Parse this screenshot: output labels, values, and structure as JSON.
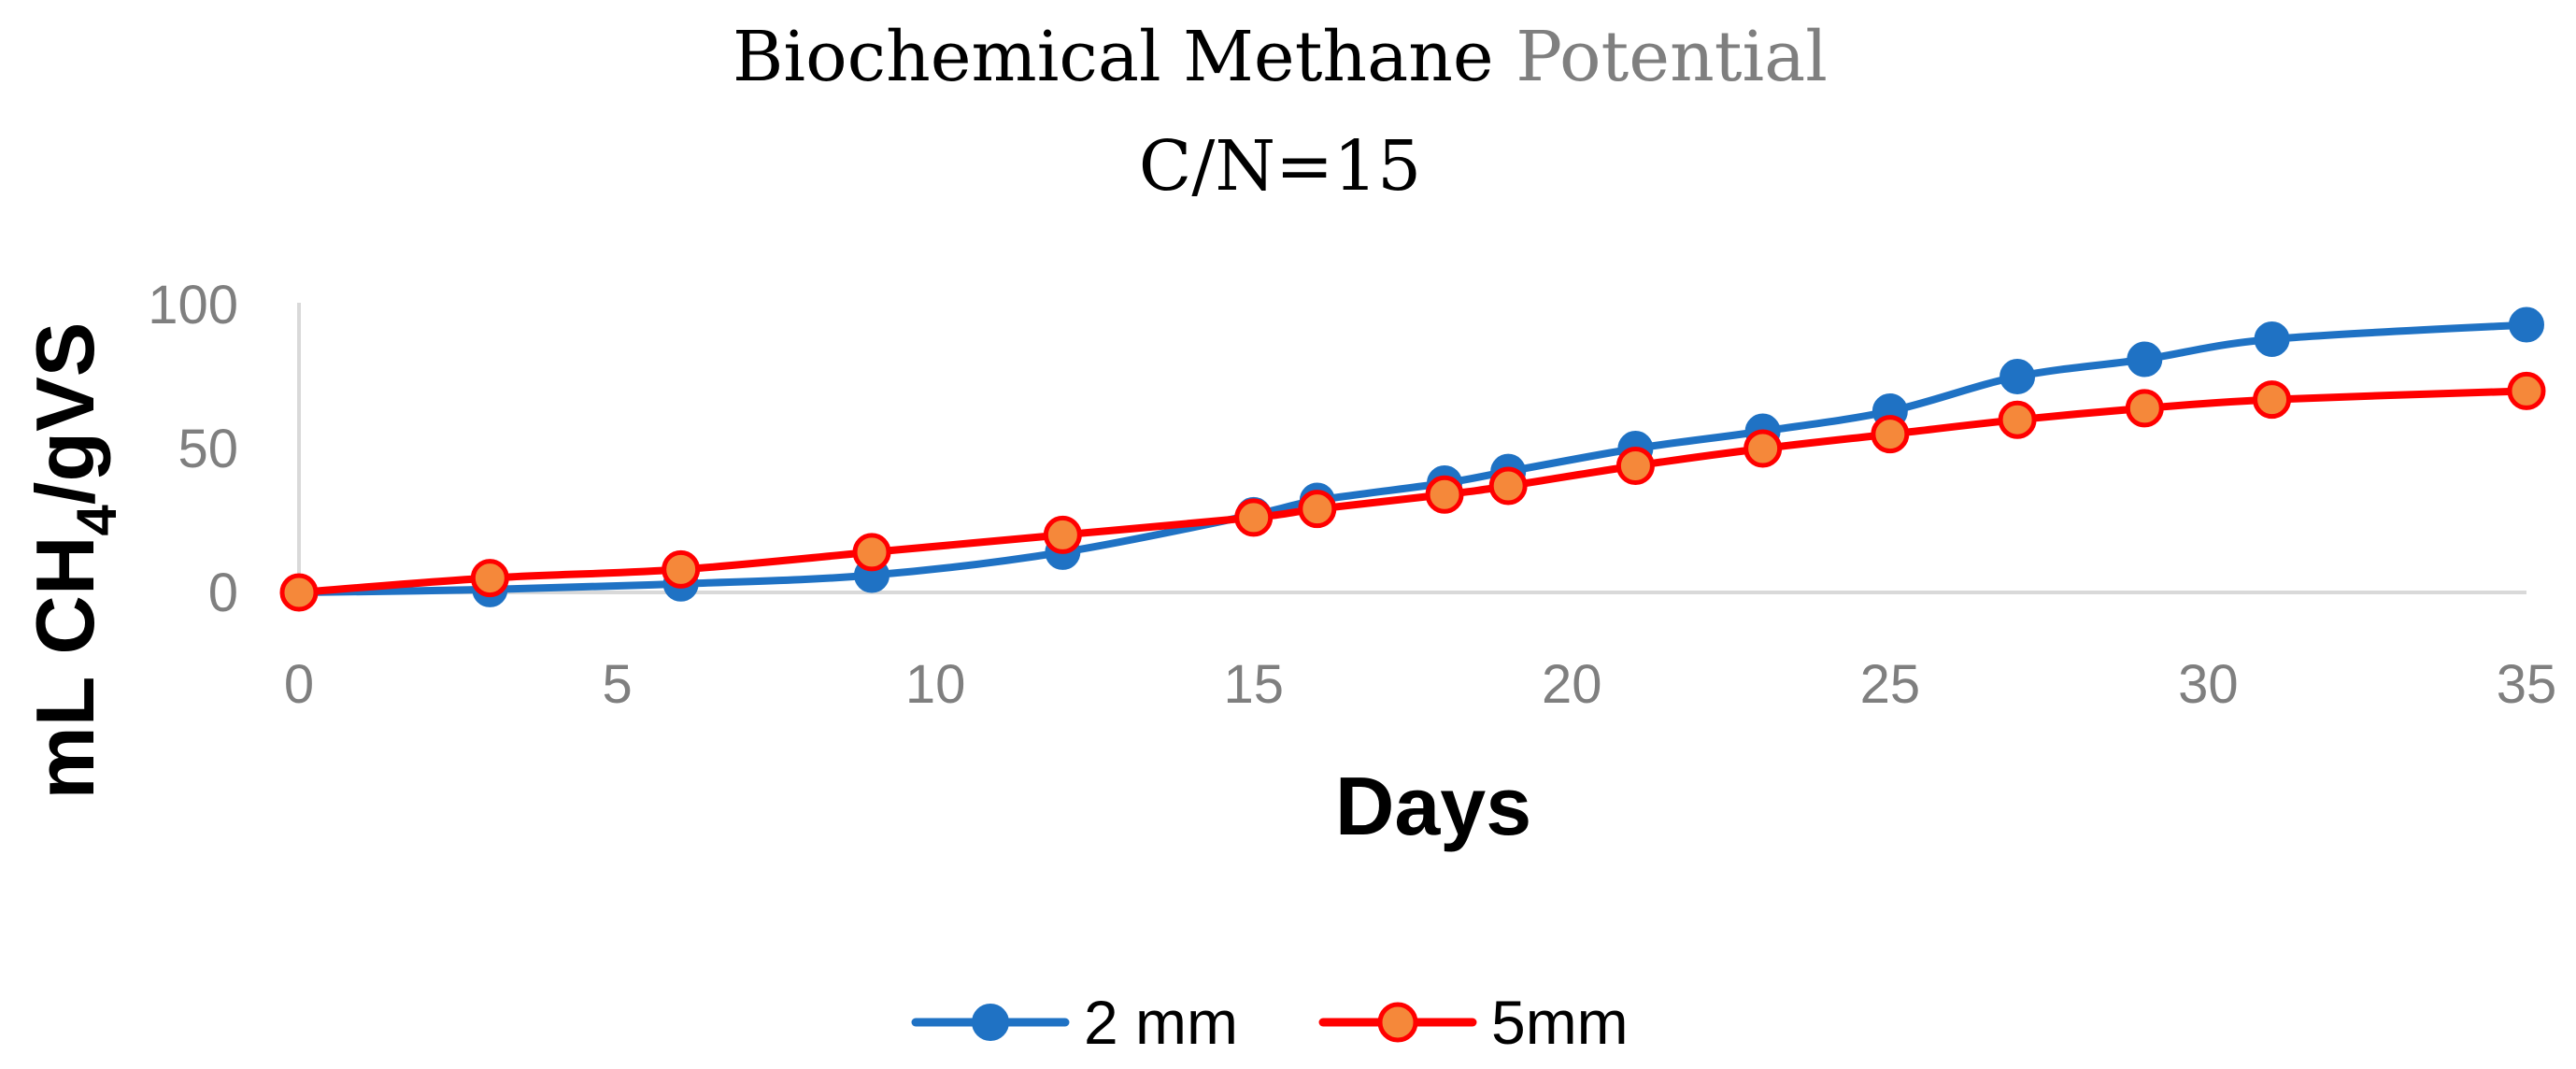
{
  "chart_data": {
    "type": "line",
    "title_main": "Biochemical Methane",
    "title_accent": "Potential",
    "subtitle": "C/N=15",
    "xlabel": "Days",
    "ylabel_prefix": "mL  CH",
    "ylabel_sub": "4",
    "ylabel_suffix": "/gVS",
    "xlim": [
      0,
      35
    ],
    "ylim": [
      0,
      100
    ],
    "xticks": [
      "0",
      "5",
      "10",
      "15",
      "20",
      "25",
      "30",
      "35"
    ],
    "yticks": [
      "0",
      "50",
      "100"
    ],
    "xtick_values": [
      0,
      5,
      10,
      15,
      20,
      25,
      30,
      35
    ],
    "ytick_values": [
      0,
      50,
      100
    ],
    "grid": false,
    "legend_position": "bottom",
    "series": [
      {
        "name": "2 mm",
        "color": "#1f72c4",
        "marker_fill": "#1f72c4",
        "marker_edge": "#1f72c4",
        "x": [
          0,
          3,
          6,
          9,
          12,
          15,
          16,
          18,
          19,
          21,
          23,
          25,
          27,
          29,
          31,
          35
        ],
        "y": [
          0,
          1,
          3,
          6,
          14,
          27,
          32,
          38,
          42,
          50,
          56,
          63,
          75,
          81,
          88,
          93
        ]
      },
      {
        "name": "5mm",
        "color": "#ff0000",
        "marker_fill": "#f5883a",
        "marker_edge": "#ff0000",
        "x": [
          0,
          3,
          6,
          9,
          12,
          15,
          16,
          18,
          19,
          21,
          23,
          25,
          27,
          29,
          31,
          35
        ],
        "y": [
          0,
          5,
          8,
          14,
          20,
          26,
          29,
          34,
          37,
          44,
          50,
          55,
          60,
          64,
          67,
          70
        ]
      }
    ]
  }
}
